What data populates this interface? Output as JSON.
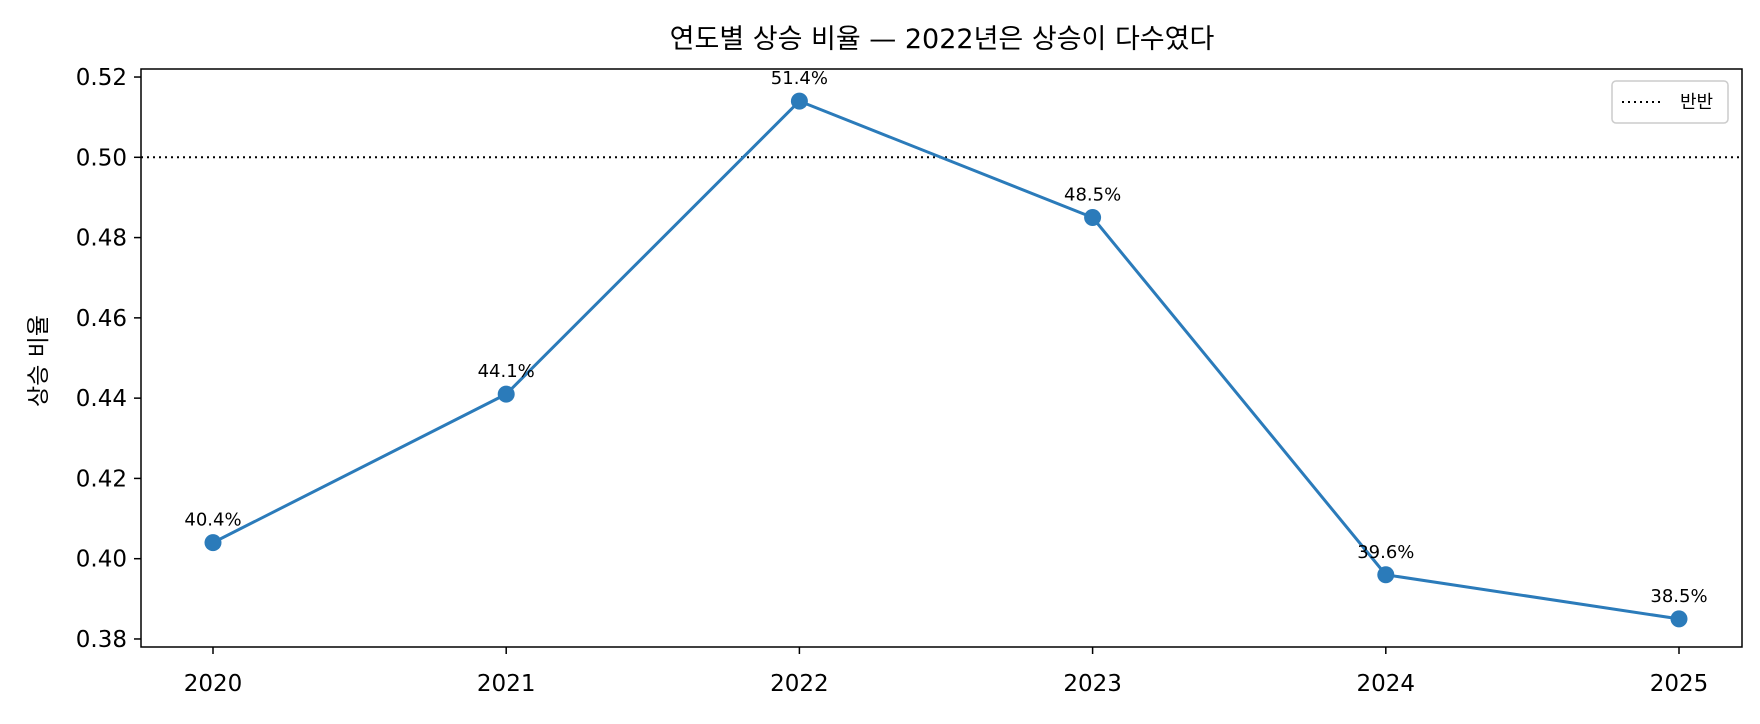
{
  "chart_data": {
    "type": "line",
    "title": "연도별 상승 비율 — 2022년은 상승이 다수였다",
    "xlabel": "",
    "ylabel": "상승 비율",
    "categories": [
      "2020",
      "2021",
      "2022",
      "2023",
      "2024",
      "2025"
    ],
    "series": [
      {
        "values": [
          0.404,
          0.441,
          0.514,
          0.485,
          0.396,
          0.385
        ],
        "labels": [
          "40.4%",
          "44.1%",
          "51.4%",
          "48.5%",
          "39.6%",
          "38.5%"
        ],
        "color": "#2b7bba"
      }
    ],
    "ylim": [
      0.378,
      0.522
    ],
    "yticks": [
      0.38,
      0.4,
      0.42,
      0.44,
      0.46,
      0.48,
      0.5,
      0.52
    ],
    "ytick_labels": [
      "0.38",
      "0.40",
      "0.42",
      "0.44",
      "0.46",
      "0.48",
      "0.50",
      "0.52"
    ],
    "reference_line": {
      "value": 0.5,
      "label": "반반",
      "style": "dotted",
      "color": "#000000"
    },
    "grid": false,
    "legend": {
      "placement": "top-right",
      "entries": [
        "반반"
      ]
    }
  }
}
